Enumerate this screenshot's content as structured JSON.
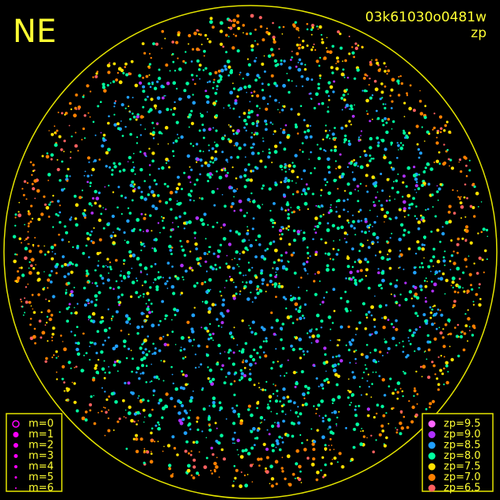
{
  "header": {
    "direction": "NE",
    "frame": "03k61030o0481w",
    "quantity": "zp"
  },
  "legend_left": {
    "color": "#ff00ff",
    "entries": [
      "m=0",
      "m=1",
      "m=2",
      "m=3",
      "m=4",
      "m=5",
      "m=6"
    ]
  },
  "legend_right": {
    "entries": [
      {
        "label": "zp=9.5",
        "color": "#ff66ff"
      },
      {
        "label": "zp=9.0",
        "color": "#b030ff"
      },
      {
        "label": "zp=8.5",
        "color": "#20a0ff"
      },
      {
        "label": "zp=8.0",
        "color": "#00ffa0"
      },
      {
        "label": "zp=7.5",
        "color": "#ffe000"
      },
      {
        "label": "zp=7.0",
        "color": "#ff8000"
      },
      {
        "label": "zp=6.5",
        "color": "#ff6060"
      }
    ]
  }
}
